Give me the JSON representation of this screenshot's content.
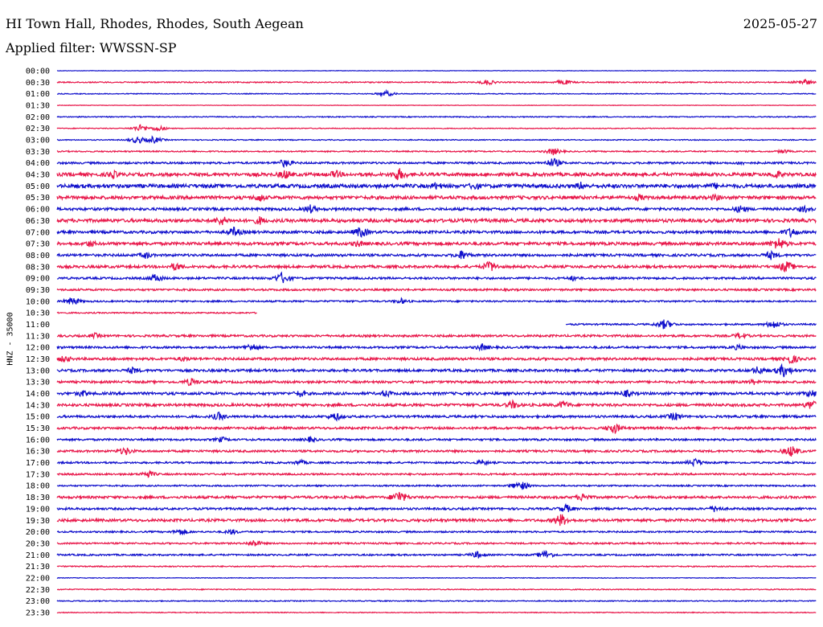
{
  "header": {
    "station": "HI Town Hall, Rhodes, Rhodes, South Aegean",
    "date": "2025-05-27",
    "filter_label": "Applied filter: WWSSN-SP"
  },
  "axis": {
    "channel_label": "HNZ - 35000"
  },
  "colors": {
    "even_trace": "#1010cc",
    "odd_trace": "#e8174a",
    "background": "#ffffff"
  },
  "chart_data": {
    "type": "line",
    "title": "",
    "xlabel": "",
    "ylabel": "HNZ - 35000",
    "x": {
      "unit": "minutes",
      "range": [
        0,
        30
      ]
    },
    "row_labels": [
      "00:00",
      "00:30",
      "01:00",
      "01:30",
      "02:00",
      "02:30",
      "03:00",
      "03:30",
      "04:00",
      "04:30",
      "05:00",
      "05:30",
      "06:00",
      "06:30",
      "07:00",
      "07:30",
      "08:00",
      "08:30",
      "09:00",
      "09:30",
      "10:00",
      "10:30",
      "11:00",
      "11:30",
      "12:00",
      "12:30",
      "13:00",
      "13:30",
      "14:00",
      "14:30",
      "15:00",
      "15:30",
      "16:00",
      "16:30",
      "17:00",
      "17:30",
      "18:00",
      "18:30",
      "19:00",
      "19:30",
      "20:00",
      "20:30",
      "21:00",
      "21:30",
      "22:00",
      "22:30",
      "23:00",
      "23:30"
    ],
    "series": [
      {
        "row": "00:00",
        "noise": 0.3,
        "events": []
      },
      {
        "row": "00:30",
        "noise": 0.7,
        "events": [
          [
            17.0,
            4
          ],
          [
            20.0,
            4
          ],
          [
            29.5,
            5
          ]
        ]
      },
      {
        "row": "01:00",
        "noise": 0.5,
        "events": [
          [
            13.0,
            4
          ]
        ]
      },
      {
        "row": "01:30",
        "noise": 0.3,
        "events": []
      },
      {
        "row": "02:00",
        "noise": 0.6,
        "events": []
      },
      {
        "row": "02:30",
        "noise": 0.5,
        "events": [
          [
            3.3,
            5
          ],
          [
            4.0,
            4
          ]
        ]
      },
      {
        "row": "03:00",
        "noise": 0.6,
        "events": [
          [
            3.2,
            5
          ],
          [
            3.8,
            5
          ]
        ]
      },
      {
        "row": "03:30",
        "noise": 0.8,
        "events": [
          [
            19.6,
            5
          ],
          [
            28.7,
            3
          ]
        ]
      },
      {
        "row": "04:00",
        "noise": 1.2,
        "events": [
          [
            9.0,
            6
          ],
          [
            19.6,
            7
          ],
          [
            27.0,
            3
          ]
        ]
      },
      {
        "row": "04:30",
        "noise": 2.0,
        "events": [
          [
            2.2,
            6
          ],
          [
            9.0,
            7
          ],
          [
            11.0,
            6
          ],
          [
            13.5,
            9
          ],
          [
            28.4,
            6
          ]
        ]
      },
      {
        "row": "05:00",
        "noise": 2.2,
        "events": [
          [
            15.0,
            6
          ],
          [
            16.5,
            6
          ],
          [
            20.7,
            6
          ],
          [
            26.0,
            5
          ]
        ]
      },
      {
        "row": "05:30",
        "noise": 2.0,
        "events": [
          [
            8.0,
            6
          ],
          [
            23.0,
            5
          ],
          [
            26.0,
            5
          ]
        ]
      },
      {
        "row": "06:00",
        "noise": 1.6,
        "events": [
          [
            10.0,
            6
          ],
          [
            27.0,
            6
          ],
          [
            29.5,
            5
          ]
        ]
      },
      {
        "row": "06:30",
        "noise": 2.0,
        "events": [
          [
            6.5,
            7
          ],
          [
            8.0,
            6
          ]
        ]
      },
      {
        "row": "07:00",
        "noise": 1.6,
        "events": [
          [
            7.0,
            7
          ],
          [
            12.0,
            8
          ],
          [
            29.0,
            7
          ]
        ]
      },
      {
        "row": "07:30",
        "noise": 1.8,
        "events": [
          [
            1.3,
            5
          ],
          [
            11.9,
            5
          ],
          [
            28.5,
            9
          ]
        ]
      },
      {
        "row": "08:00",
        "noise": 1.5,
        "events": [
          [
            3.5,
            5
          ],
          [
            16.0,
            7
          ],
          [
            28.2,
            6
          ]
        ]
      },
      {
        "row": "08:30",
        "noise": 1.6,
        "events": [
          [
            4.7,
            6
          ],
          [
            17.1,
            8
          ],
          [
            28.8,
            8
          ]
        ]
      },
      {
        "row": "09:00",
        "noise": 1.3,
        "events": [
          [
            3.9,
            6
          ],
          [
            8.9,
            8
          ],
          [
            20.4,
            4
          ]
        ]
      },
      {
        "row": "09:30",
        "noise": 1.2,
        "events": []
      },
      {
        "row": "10:00",
        "noise": 1.0,
        "events": [
          [
            0.6,
            6
          ],
          [
            13.6,
            4
          ]
        ]
      },
      {
        "row": "10:30",
        "noise": 0.8,
        "events": [],
        "end": 7.9
      },
      {
        "row": "11:00",
        "noise": 1.0,
        "events": [
          [
            24.0,
            7
          ],
          [
            28.3,
            6
          ]
        ],
        "start": 20.1
      },
      {
        "row": "11:30",
        "noise": 1.3,
        "events": [
          [
            1.5,
            4
          ],
          [
            27.0,
            5
          ]
        ]
      },
      {
        "row": "12:00",
        "noise": 1.3,
        "events": [
          [
            7.7,
            6
          ],
          [
            16.8,
            5
          ],
          [
            26.9,
            4
          ]
        ]
      },
      {
        "row": "12:30",
        "noise": 1.5,
        "events": [
          [
            0.3,
            5
          ],
          [
            5.0,
            4
          ],
          [
            29.0,
            7
          ]
        ]
      },
      {
        "row": "13:00",
        "noise": 1.5,
        "events": [
          [
            3.0,
            5
          ],
          [
            28.7,
            9
          ],
          [
            27.7,
            6
          ]
        ]
      },
      {
        "row": "13:30",
        "noise": 1.4,
        "events": [
          [
            5.3,
            6
          ],
          [
            27.5,
            4
          ]
        ]
      },
      {
        "row": "14:00",
        "noise": 1.6,
        "events": [
          [
            1.0,
            5
          ],
          [
            9.6,
            5
          ],
          [
            13.0,
            5
          ],
          [
            22.5,
            5
          ],
          [
            29.8,
            6
          ]
        ]
      },
      {
        "row": "14:30",
        "noise": 1.6,
        "events": [
          [
            18.0,
            6
          ],
          [
            20.0,
            6
          ],
          [
            29.8,
            7
          ]
        ]
      },
      {
        "row": "15:00",
        "noise": 1.4,
        "events": [
          [
            6.4,
            6
          ],
          [
            11.0,
            6
          ],
          [
            24.4,
            6
          ]
        ]
      },
      {
        "row": "15:30",
        "noise": 1.4,
        "events": [
          [
            22.0,
            8
          ]
        ]
      },
      {
        "row": "16:00",
        "noise": 1.2,
        "events": [
          [
            6.5,
            4
          ],
          [
            10.0,
            4
          ]
        ]
      },
      {
        "row": "16:30",
        "noise": 1.3,
        "events": [
          [
            2.7,
            6
          ],
          [
            29.0,
            8
          ]
        ]
      },
      {
        "row": "17:00",
        "noise": 1.1,
        "events": [
          [
            9.6,
            4
          ],
          [
            16.8,
            4
          ],
          [
            25.2,
            6
          ]
        ]
      },
      {
        "row": "17:30",
        "noise": 1.1,
        "events": [
          [
            3.6,
            5
          ]
        ]
      },
      {
        "row": "18:00",
        "noise": 0.9,
        "events": [
          [
            18.3,
            7
          ]
        ]
      },
      {
        "row": "18:30",
        "noise": 1.5,
        "events": [
          [
            13.5,
            9
          ],
          [
            20.8,
            6
          ]
        ]
      },
      {
        "row": "19:00",
        "noise": 1.3,
        "events": [
          [
            20.1,
            6
          ],
          [
            26.0,
            5
          ]
        ]
      },
      {
        "row": "19:30",
        "noise": 1.6,
        "events": [
          [
            19.9,
            9
          ]
        ]
      },
      {
        "row": "20:00",
        "noise": 1.0,
        "events": [
          [
            4.9,
            5
          ],
          [
            6.9,
            4
          ]
        ]
      },
      {
        "row": "20:30",
        "noise": 1.0,
        "events": [
          [
            7.8,
            5
          ]
        ]
      },
      {
        "row": "21:00",
        "noise": 1.0,
        "events": [
          [
            16.6,
            5
          ],
          [
            19.3,
            6
          ]
        ]
      },
      {
        "row": "21:30",
        "noise": 0.7,
        "events": []
      },
      {
        "row": "22:00",
        "noise": 0.4,
        "events": []
      },
      {
        "row": "22:30",
        "noise": 0.6,
        "events": []
      },
      {
        "row": "23:00",
        "noise": 0.6,
        "events": []
      },
      {
        "row": "23:30",
        "noise": 0.5,
        "events": []
      }
    ]
  }
}
